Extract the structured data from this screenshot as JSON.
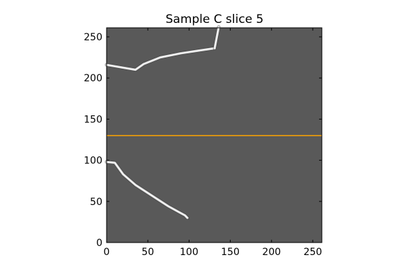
{
  "figure": {
    "title": "Sample C slice 5",
    "x_ticks": [
      "0",
      "50",
      "100",
      "150",
      "200",
      "250"
    ],
    "y_ticks": [
      "0",
      "50",
      "100",
      "150",
      "200",
      "250"
    ]
  },
  "image": {
    "background_color": "#595959",
    "extent": [
      0,
      261,
      0,
      261
    ],
    "streaks": [
      {
        "name": "upper-left-streak",
        "points": [
          [
            0,
            216
          ],
          [
            35,
            210
          ],
          [
            45,
            217
          ],
          [
            65,
            225
          ],
          [
            90,
            230
          ],
          [
            110,
            233
          ],
          [
            130,
            236
          ]
        ]
      },
      {
        "name": "upper-edge-streak",
        "points": [
          [
            131,
            236
          ],
          [
            136,
            262
          ]
        ]
      },
      {
        "name": "lower-streak",
        "points": [
          [
            0,
            98
          ],
          [
            10,
            97
          ],
          [
            20,
            83
          ],
          [
            35,
            70
          ],
          [
            55,
            57
          ],
          [
            75,
            44
          ],
          [
            95,
            33
          ],
          [
            98,
            30
          ]
        ]
      }
    ],
    "marker_line": {
      "y": 130,
      "color": "#ffa500"
    }
  }
}
